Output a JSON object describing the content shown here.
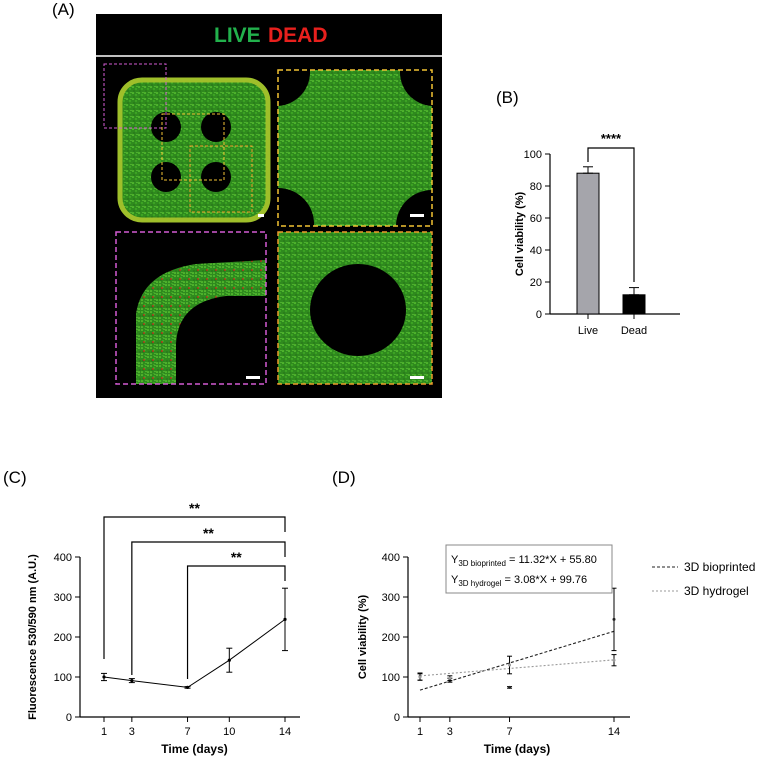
{
  "panels": {
    "a": "(A)",
    "b": "(B)",
    "c": "(C)",
    "d": "(D)"
  },
  "micrograph": {
    "live_label": "LIVE",
    "dead_label": "DEAD",
    "colors": {
      "live": "#22b14c",
      "dead": "#e8201d",
      "zoom_magenta": "#d35bd3",
      "zoom_yellow": "#f2c233",
      "zoom_orange": "#ee9a2a"
    }
  },
  "chart_data": [
    {
      "id": "B",
      "type": "bar",
      "categories": [
        "Live",
        "Dead"
      ],
      "values": [
        88,
        12
      ],
      "errors": [
        4,
        4.5
      ],
      "bar_colors": [
        "#a5a5ab",
        "#000000"
      ],
      "xlabel": "",
      "ylabel": "Cell viability (%)",
      "ylim": [
        0,
        100
      ],
      "yticks": [
        0,
        20,
        40,
        60,
        80,
        100
      ],
      "significance": [
        {
          "from": "Live",
          "to": "Dead",
          "label": "****"
        }
      ]
    },
    {
      "id": "C",
      "type": "line",
      "x": [
        1,
        3,
        7,
        10,
        14
      ],
      "xticks": [
        "1",
        "3",
        "7",
        "10",
        "14"
      ],
      "series": [
        {
          "values": [
            100,
            91,
            74,
            142,
            244
          ],
          "errors": [
            9,
            5,
            2,
            30,
            78
          ]
        }
      ],
      "xlabel": "Time (days)",
      "ylabel": "Fluorescence 530/590 nm (A.U.)",
      "ylim": [
        0,
        400
      ],
      "yticks": [
        0,
        100,
        200,
        300,
        400
      ],
      "significance": [
        {
          "from": 1,
          "to": 14,
          "label": "**"
        },
        {
          "from": 3,
          "to": 14,
          "label": "**"
        },
        {
          "from": 7,
          "to": 14,
          "label": "**"
        }
      ]
    },
    {
      "id": "D",
      "type": "scatter",
      "x": [
        1,
        3,
        7,
        14
      ],
      "xticks": [
        "1",
        "3",
        "7",
        "14"
      ],
      "series": [
        {
          "name": "3D bioprinted",
          "values": [
            101,
            92,
            74,
            244
          ],
          "errors": [
            9,
            5,
            2,
            78
          ],
          "fit": {
            "slope": 11.32,
            "intercept": 55.8
          }
        },
        {
          "name": "3D hydrogel",
          "values": [
            100,
            97,
            130,
            142
          ],
          "errors": [
            8,
            6,
            22,
            14
          ],
          "fit": {
            "slope": 3.08,
            "intercept": 99.76
          }
        }
      ],
      "equations": [
        {
          "y": "Y",
          "sub": "3D bioprinted",
          "rhs": " = 11.32*X + 55.80"
        },
        {
          "y": "Y",
          "sub": "3D hydrogel",
          "rhs": " = 3.08*X + 99.76"
        }
      ],
      "xlabel": "Time (days)",
      "ylabel": "Cell viability (%)",
      "ylim": [
        0,
        400
      ],
      "yticks": [
        0,
        100,
        200,
        300,
        400
      ],
      "legend": "right"
    }
  ]
}
